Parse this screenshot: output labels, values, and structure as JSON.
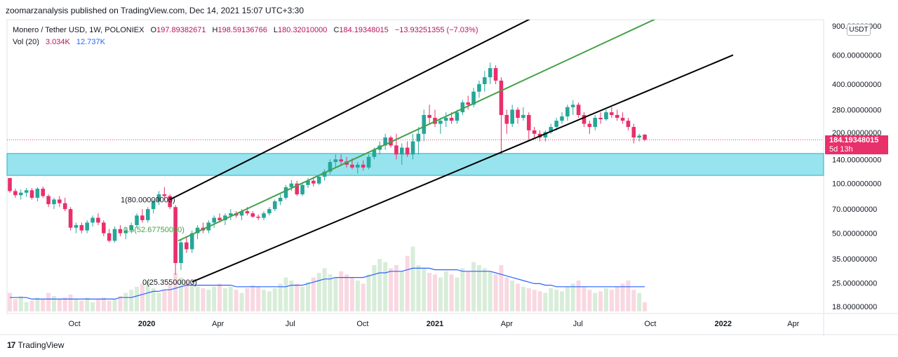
{
  "header": {
    "publisher": "zoomarzanalysis published on TradingView.com, Dec 14, 2021 15:07 UTC+3:30"
  },
  "legend": {
    "symbol": "Monero / Tether USD, 1W, POLONIEX",
    "open_label": "O",
    "open": "197.89382671",
    "high_label": "H",
    "high": "198.59136766",
    "low_label": "L",
    "low": "180.32010000",
    "close_label": "C",
    "close": "184.19348015",
    "change": "−13.93251355 (−7.03%)",
    "volume_label": "Vol (20)",
    "volume": "3.034K",
    "volume_ma": "12.737K"
  },
  "price_axis": {
    "currency": "USDT",
    "current_price": "184.19348015",
    "countdown": "5d 13h"
  },
  "footer": {
    "brand": "TradingView",
    "logo_mark": "17"
  },
  "colors": {
    "up": "#26a69a",
    "down": "#e8306a",
    "zone": "#97e3ee",
    "zone_border": "#19b7c9",
    "fib_mid": "#43a047",
    "channel": "#000000",
    "vol_ma": "#2962ff"
  },
  "chart_data": {
    "type": "candlestick",
    "scale": "log",
    "ylim": [
      18,
      900
    ],
    "y_ticks": [
      {
        "v": 900,
        "label": "900.00000000"
      },
      {
        "v": 600,
        "label": "600.00000000"
      },
      {
        "v": 400,
        "label": "400.00000000"
      },
      {
        "v": 280,
        "label": "280.00000000"
      },
      {
        "v": 200,
        "label": "200.00000000"
      },
      {
        "v": 140,
        "label": "140.00000000"
      },
      {
        "v": 100,
        "label": "100.00000000"
      },
      {
        "v": 70,
        "label": "70.00000000"
      },
      {
        "v": 50,
        "label": "50.00000000"
      },
      {
        "v": 35,
        "label": "35.00000000"
      },
      {
        "v": 25,
        "label": "25.00000000"
      },
      {
        "v": 18,
        "label": "18.00000000"
      }
    ],
    "x_ticks": [
      {
        "label": "Oct",
        "i": 11.7
      },
      {
        "label": "2020",
        "i": 24.8
      },
      {
        "label": "Apr",
        "i": 37.7
      },
      {
        "label": "Jul",
        "i": 50.8
      },
      {
        "label": "Oct",
        "i": 63.9
      },
      {
        "label": "2021",
        "i": 77.0
      },
      {
        "label": "Apr",
        "i": 90.0
      },
      {
        "label": "Jul",
        "i": 102.9
      },
      {
        "label": "Oct",
        "i": 116.0
      },
      {
        "label": "2022",
        "i": 129.2
      },
      {
        "label": "Apr",
        "i": 141.9
      }
    ],
    "candles": [
      [
        108,
        108,
        88,
        90
      ],
      [
        90,
        93,
        82,
        85
      ],
      [
        85,
        92,
        80,
        88
      ],
      [
        88,
        94,
        83,
        91
      ],
      [
        91,
        94,
        80,
        82
      ],
      [
        82,
        95,
        78,
        93
      ],
      [
        93,
        96,
        82,
        84
      ],
      [
        84,
        86,
        72,
        75
      ],
      [
        75,
        82,
        70,
        80
      ],
      [
        80,
        84,
        72,
        76
      ],
      [
        76,
        82,
        68,
        70
      ],
      [
        70,
        72,
        52,
        54
      ],
      [
        54,
        58,
        50,
        56
      ],
      [
        56,
        58,
        50,
        52
      ],
      [
        52,
        60,
        50,
        58
      ],
      [
        58,
        64,
        55,
        62
      ],
      [
        62,
        66,
        56,
        58
      ],
      [
        58,
        60,
        48,
        50
      ],
      [
        50,
        53,
        44,
        45
      ],
      [
        45,
        55,
        44,
        53
      ],
      [
        53,
        56,
        48,
        50
      ],
      [
        50,
        54,
        46,
        52
      ],
      [
        52,
        58,
        50,
        56
      ],
      [
        56,
        66,
        54,
        64
      ],
      [
        64,
        70,
        58,
        60
      ],
      [
        60,
        72,
        58,
        70
      ],
      [
        70,
        80,
        66,
        78
      ],
      [
        78,
        90,
        74,
        86
      ],
      [
        86,
        95,
        80,
        84
      ],
      [
        84,
        86,
        70,
        72
      ],
      [
        72,
        74,
        28,
        33
      ],
      [
        33,
        46,
        30,
        44
      ],
      [
        44,
        48,
        38,
        40
      ],
      [
        40,
        52,
        38,
        50
      ],
      [
        50,
        56,
        46,
        54
      ],
      [
        54,
        58,
        50,
        52
      ],
      [
        52,
        60,
        50,
        58
      ],
      [
        58,
        64,
        54,
        62
      ],
      [
        62,
        66,
        58,
        60
      ],
      [
        60,
        66,
        56,
        64
      ],
      [
        64,
        70,
        60,
        66
      ],
      [
        66,
        68,
        62,
        64
      ],
      [
        64,
        70,
        60,
        68
      ],
      [
        68,
        72,
        64,
        66
      ],
      [
        66,
        68,
        62,
        63
      ],
      [
        63,
        65,
        60,
        62
      ],
      [
        62,
        68,
        60,
        66
      ],
      [
        66,
        72,
        64,
        70
      ],
      [
        70,
        80,
        68,
        78
      ],
      [
        78,
        86,
        74,
        82
      ],
      [
        82,
        98,
        80,
        95
      ],
      [
        95,
        105,
        90,
        100
      ],
      [
        100,
        104,
        84,
        86
      ],
      [
        86,
        100,
        84,
        98
      ],
      [
        98,
        108,
        94,
        104
      ],
      [
        104,
        110,
        96,
        100
      ],
      [
        100,
        112,
        98,
        110
      ],
      [
        110,
        122,
        104,
        118
      ],
      [
        118,
        140,
        114,
        135
      ],
      [
        135,
        150,
        125,
        140
      ],
      [
        140,
        150,
        130,
        136
      ],
      [
        136,
        145,
        125,
        130
      ],
      [
        130,
        142,
        122,
        125
      ],
      [
        125,
        135,
        115,
        130
      ],
      [
        130,
        138,
        120,
        125
      ],
      [
        125,
        150,
        122,
        145
      ],
      [
        145,
        165,
        140,
        160
      ],
      [
        160,
        180,
        150,
        170
      ],
      [
        170,
        200,
        160,
        190
      ],
      [
        190,
        195,
        165,
        170
      ],
      [
        170,
        200,
        140,
        150
      ],
      [
        150,
        175,
        130,
        165
      ],
      [
        165,
        180,
        145,
        150
      ],
      [
        150,
        200,
        140,
        180
      ],
      [
        180,
        220,
        150,
        200
      ],
      [
        200,
        280,
        180,
        260
      ],
      [
        260,
        300,
        230,
        250
      ],
      [
        250,
        280,
        220,
        230
      ],
      [
        230,
        250,
        200,
        240
      ],
      [
        240,
        270,
        220,
        250
      ],
      [
        250,
        270,
        230,
        240
      ],
      [
        240,
        280,
        230,
        270
      ],
      [
        270,
        320,
        260,
        310
      ],
      [
        310,
        340,
        280,
        300
      ],
      [
        300,
        380,
        290,
        360
      ],
      [
        360,
        420,
        330,
        400
      ],
      [
        400,
        480,
        360,
        440
      ],
      [
        440,
        540,
        400,
        500
      ],
      [
        500,
        520,
        400,
        420
      ],
      [
        420,
        440,
        150,
        260
      ],
      [
        260,
        280,
        200,
        230
      ],
      [
        230,
        300,
        220,
        280
      ],
      [
        280,
        290,
        230,
        250
      ],
      [
        250,
        290,
        240,
        260
      ],
      [
        260,
        270,
        180,
        210
      ],
      [
        210,
        220,
        190,
        200
      ],
      [
        200,
        210,
        180,
        190
      ],
      [
        190,
        210,
        180,
        205
      ],
      [
        205,
        230,
        200,
        220
      ],
      [
        220,
        250,
        210,
        240
      ],
      [
        240,
        270,
        230,
        255
      ],
      [
        255,
        300,
        240,
        290
      ],
      [
        290,
        320,
        260,
        300
      ],
      [
        300,
        310,
        250,
        260
      ],
      [
        260,
        270,
        220,
        230
      ],
      [
        230,
        240,
        200,
        220
      ],
      [
        220,
        260,
        210,
        250
      ],
      [
        250,
        270,
        230,
        245
      ],
      [
        245,
        280,
        240,
        270
      ],
      [
        270,
        290,
        250,
        260
      ],
      [
        260,
        280,
        240,
        250
      ],
      [
        250,
        270,
        230,
        240
      ],
      [
        240,
        250,
        210,
        220
      ],
      [
        220,
        230,
        175,
        190
      ],
      [
        190,
        200,
        180,
        195
      ],
      [
        197.89,
        198.59,
        180.32,
        184.19
      ]
    ],
    "volume": [
      12,
      8,
      10,
      6,
      7,
      9,
      8,
      12,
      10,
      8,
      9,
      11,
      8,
      7,
      9,
      6,
      8,
      9,
      7,
      8,
      10,
      12,
      14,
      16,
      18,
      20,
      15,
      12,
      14,
      18,
      25,
      22,
      20,
      18,
      16,
      15,
      14,
      16,
      18,
      15,
      16,
      14,
      12,
      15,
      17,
      16,
      14,
      13,
      15,
      18,
      22,
      20,
      18,
      16,
      19,
      22,
      25,
      28,
      24,
      22,
      26,
      24,
      22,
      20,
      18,
      24,
      30,
      34,
      32,
      28,
      30,
      26,
      36,
      42,
      30,
      28,
      25,
      24,
      22,
      26,
      24,
      22,
      28,
      26,
      32,
      30,
      28,
      26,
      24,
      30,
      22,
      20,
      18,
      16,
      15,
      14,
      13,
      12,
      15,
      14,
      13,
      16,
      18,
      20,
      16,
      14,
      12,
      13,
      15,
      14,
      16,
      18,
      20,
      14,
      12,
      6
    ],
    "volume_ma": [
      9,
      9,
      9,
      9,
      8,
      8,
      8,
      8,
      8,
      8,
      8,
      8,
      8,
      8,
      8,
      8,
      8,
      8,
      8,
      8,
      9,
      9,
      9,
      10,
      11,
      12,
      13,
      13,
      14,
      14,
      15,
      16,
      17,
      17,
      17,
      17,
      17,
      17,
      17,
      17,
      17,
      16,
      16,
      16,
      16,
      16,
      16,
      16,
      16,
      16,
      16,
      17,
      17,
      17,
      18,
      19,
      20,
      21,
      21,
      22,
      22,
      22,
      22,
      22,
      22,
      23,
      24,
      25,
      25,
      26,
      26,
      26,
      27,
      28,
      28,
      28,
      28,
      27,
      27,
      27,
      27,
      27,
      26,
      26,
      26,
      26,
      26,
      26,
      25,
      24,
      23,
      22,
      21,
      20,
      19,
      18,
      18,
      17,
      17,
      16,
      16,
      16,
      16,
      16,
      16,
      16,
      16,
      16,
      16,
      16,
      16,
      16,
      16,
      16,
      16,
      16
    ],
    "zone": {
      "low": 112,
      "high": 152
    },
    "fib_labels": [
      {
        "label": "1(80.00000000)",
        "value": 80
      },
      {
        "label": "0.5(52.67750000)",
        "value": 52.6775
      },
      {
        "label": "0(25.35500000)",
        "value": 25.355
      }
    ],
    "channel_upper": [
      {
        "i": 29,
        "v": 80
      },
      {
        "i": 112.4,
        "v": 2000
      }
    ],
    "channel_lower": [
      {
        "i": 33,
        "v": 25.355
      },
      {
        "i": 131,
        "v": 600
      }
    ],
    "channel_mid": [
      {
        "i": 30.5,
        "v": 45
      },
      {
        "i": 132,
        "v": 1700
      }
    ]
  }
}
